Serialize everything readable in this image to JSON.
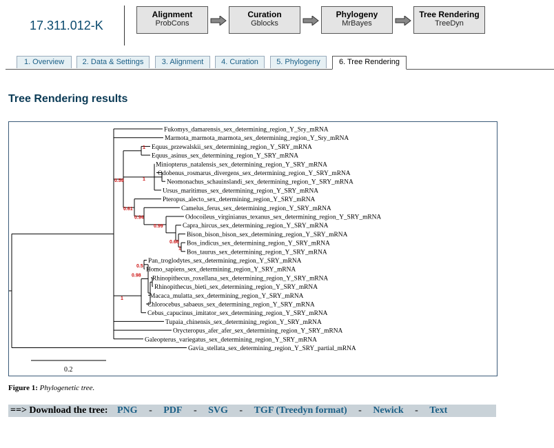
{
  "job": {
    "id": "17.311.012-K"
  },
  "pipeline": [
    {
      "title": "Alignment",
      "tool": "ProbCons"
    },
    {
      "title": "Curation",
      "tool": "Gblocks"
    },
    {
      "title": "Phylogeny",
      "tool": "MrBayes"
    },
    {
      "title": "Tree Rendering",
      "tool": "TreeDyn"
    }
  ],
  "tabs": [
    {
      "label": "1. Overview"
    },
    {
      "label": "2. Data & Settings"
    },
    {
      "label": "3. Alignment"
    },
    {
      "label": "4. Curation"
    },
    {
      "label": "5. Phylogeny"
    },
    {
      "label": "6. Tree Rendering",
      "active": true
    }
  ],
  "page": {
    "title": "Tree Rendering results"
  },
  "tree": {
    "scale_label": "0.2",
    "leaves": [
      "Fukomys_damarensis_sex_determining_region_Y_Sry_mRNA",
      "Marmota_marmota_marmota_sex_determining_region_Y_Sry_mRNA",
      "Equus_przewalskii_sex_determining_region_Y_SRY_mRNA",
      "Equus_asinus_sex_determining_region_Y_SRY_mRNA",
      "Miniopterus_natalensis_sex_determining_region_Y_SRY_mRNA",
      "Odobenus_rosmarus_divergens_sex_determining_region_Y_SRY_mRNA",
      "Neomonachus_schauinslandi_sex_determining_region_Y_SRY_mRNA",
      "Ursus_maritimus_sex_determining_region_Y_SRY_mRNA",
      "Pteropus_alecto_sex_determining_region_Y_SRY_mRNA",
      "Camelus_ferus_sex_determining_region_Y_SRY_mRNA",
      "Odocoileus_virginianus_texanus_sex_determining_region_Y_SRY_mRNA",
      "Capra_hircus_sex_determining_region_Y_SRY_mRNA",
      "Bison_bison_bison_sex_determining_region_Y_SRY_mRNA",
      "Bos_indicus_sex_determining_region_Y_SRY_mRNA",
      "Bos_taurus_sex_determining_region_Y_SRY_mRNA",
      "Pan_troglodytes_sex_determining_region_Y_SRY_mRNA",
      "Homo_sapiens_sex_determining_region_Y_SRY_mRNA",
      "Rhinopithecus_roxellana_sex_determining_region_Y_SRY_mRNA",
      "Rhinopithecus_bieti_sex_determining_region_Y_SRY_mRNA",
      "Macaca_mulatta_sex_determining_region_Y_SRY_mRNA",
      "Chlorocebus_sabaeus_sex_determining_region_Y_SRY_mRNA",
      "Cebus_capucinus_imitator_sex_determining_region_Y_SRY_mRNA",
      "Tupaia_chinensis_sex_determining_region_Y_SRY_mRNA",
      "Orycteropus_afer_afer_sex_determining_region_Y_SRY_mRNA",
      "Galeopterus_variegatus_sex_determining_region_Y_SRY_mRNA",
      "Gavia_stellata_sex_determining_region_Y_SRY_partial_mRNA"
    ],
    "supports": [
      "1",
      "1",
      "0.59",
      "0.61",
      "0.94",
      "0.99",
      "0.66",
      "1",
      "0.5",
      "0.98",
      "1"
    ]
  },
  "figure": {
    "number": "Figure 1:",
    "caption": "Phylogenetic tree."
  },
  "download": {
    "label": "==> Download the tree:",
    "links": [
      "PNG",
      "PDF",
      "SVG",
      "TGF (Treedyn format)",
      "Newick",
      "Text"
    ],
    "separator": "-"
  },
  "colors": {
    "support": "#cc1111",
    "accent": "#1b5f86",
    "bar": "#c9d2d8"
  }
}
